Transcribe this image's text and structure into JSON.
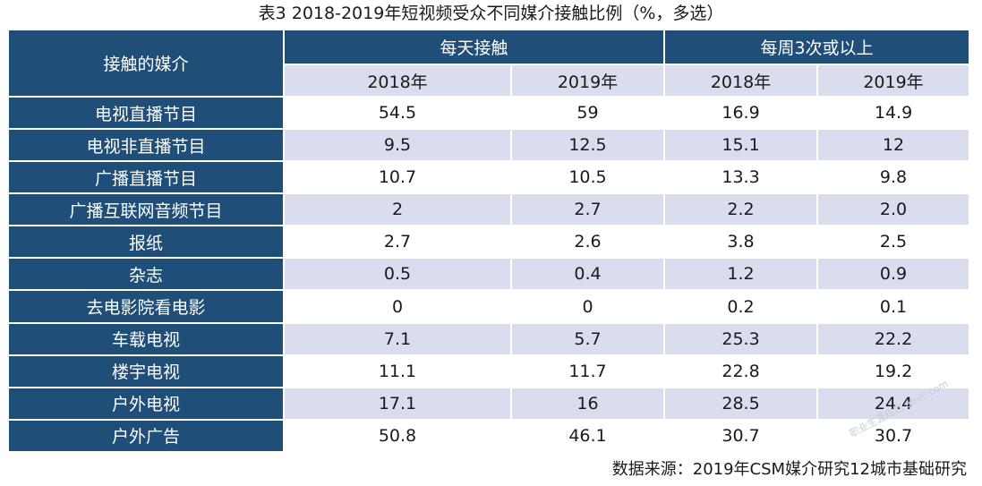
{
  "title": "表3  2018-2019年短视频受众不同媒介接触比例（%，多选）",
  "header": {
    "row_label": "接触的媒介",
    "groups": [
      "每天接触",
      "每周3次或以上"
    ],
    "years": [
      "2018年",
      "2019年",
      "2018年",
      "2019年"
    ]
  },
  "rows": [
    {
      "label": "电视直播节目",
      "values": [
        "54.5",
        "59",
        "16.9",
        "14.9"
      ]
    },
    {
      "label": "电视非直播节目",
      "values": [
        "9.5",
        "12.5",
        "15.1",
        "12"
      ]
    },
    {
      "label": "广播直播节目",
      "values": [
        "10.7",
        "10.5",
        "13.3",
        "9.8"
      ]
    },
    {
      "label": "广播互联网音频节目",
      "values": [
        "2",
        "2.7",
        "2.2",
        "2.0"
      ]
    },
    {
      "label": "报纸",
      "values": [
        "2.7",
        "2.6",
        "3.8",
        "2.5"
      ]
    },
    {
      "label": "杂志",
      "values": [
        "0.5",
        "0.4",
        "1.2",
        "0.9"
      ]
    },
    {
      "label": "去电影院看电影",
      "values": [
        "0",
        "0",
        "0.2",
        "0.1"
      ]
    },
    {
      "label": "车载电视",
      "values": [
        "7.1",
        "5.7",
        "25.3",
        "22.2"
      ]
    },
    {
      "label": "楼宇电视",
      "values": [
        "11.1",
        "11.7",
        "22.8",
        "19.2"
      ]
    },
    {
      "label": "户外电视",
      "values": [
        "17.1",
        "16",
        "28.5",
        "24.4"
      ]
    },
    {
      "label": "户外广告",
      "values": [
        "50.8",
        "46.1",
        "30.7",
        "30.7"
      ]
    }
  ],
  "source": "数据来源：2019年CSM媒介研究12城市基础研究",
  "watermark": "职业生涯规划 ahvc.com"
}
